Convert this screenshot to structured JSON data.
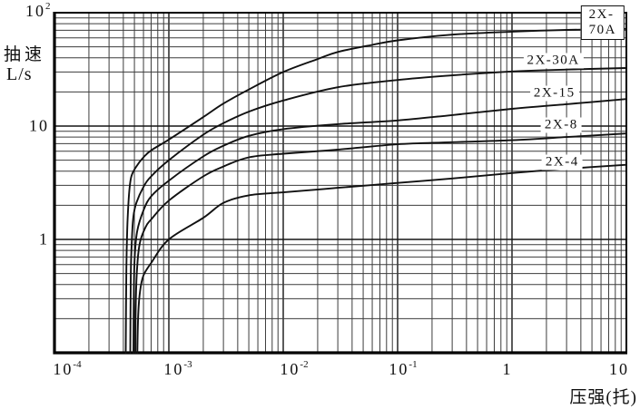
{
  "axes": {
    "y_label_cn": "抽速",
    "y_label_unit": "L/s",
    "x_label": "压强(托)",
    "x_ticks": [
      {
        "base": "10",
        "exp": "-4",
        "p": 0.0001
      },
      {
        "base": "10",
        "exp": "-3",
        "p": 0.001
      },
      {
        "base": "10",
        "exp": "-2",
        "p": 0.01
      },
      {
        "base": "10",
        "exp": "-1",
        "p": 0.1
      },
      {
        "base": "1",
        "exp": "",
        "p": 1
      },
      {
        "base": "10",
        "exp": "",
        "p": 10
      }
    ],
    "y_ticks": [
      {
        "base": "10",
        "exp": "2",
        "s": 100
      },
      {
        "base": "10",
        "exp": "",
        "s": 10
      },
      {
        "base": "1",
        "exp": "",
        "s": 1
      }
    ]
  },
  "colors": {
    "background": "#ffffff",
    "curve": "#111111",
    "grid_minor": "#3c3c3c",
    "grid_major": "#151515",
    "border": "#000000",
    "text": "#111111"
  },
  "chart_data": {
    "type": "line",
    "title": "",
    "xlabel": "压强(托)",
    "ylabel": "抽速 L/s",
    "x_scale": "log",
    "y_scale": "log",
    "xlim": [
      0.0001,
      10
    ],
    "ylim": [
      0.1,
      100
    ],
    "grid": "full log grid, major and minor lines on both axes",
    "legend_position": "labels inline at right side of curves",
    "series": [
      {
        "name": "2X-70A",
        "boxed_label": true,
        "label_at": {
          "p": 6.2,
          "s": 82
        },
        "points": [
          [
            0.00042,
            0.1
          ],
          [
            0.000425,
            0.55
          ],
          [
            0.000435,
            1.4
          ],
          [
            0.00045,
            2.6
          ],
          [
            0.00047,
            3.6
          ],
          [
            0.00052,
            4.4
          ],
          [
            0.0006,
            5.3
          ],
          [
            0.0007,
            6.1
          ],
          [
            0.001,
            7.6
          ],
          [
            0.002,
            12
          ],
          [
            0.003,
            15.8
          ],
          [
            0.005,
            21
          ],
          [
            0.01,
            30
          ],
          [
            0.02,
            39
          ],
          [
            0.03,
            45
          ],
          [
            0.06,
            52
          ],
          [
            0.1,
            57
          ],
          [
            0.3,
            64
          ],
          [
            1,
            68
          ],
          [
            3,
            70.5
          ],
          [
            10,
            72
          ]
        ]
      },
      {
        "name": "2X-30A",
        "boxed_label": false,
        "label_at": {
          "p": 2.3,
          "s": 38
        },
        "points": [
          [
            0.00046,
            0.1
          ],
          [
            0.000465,
            0.5
          ],
          [
            0.000475,
            1.0
          ],
          [
            0.00049,
            1.6
          ],
          [
            0.00052,
            2.1
          ],
          [
            0.0006,
            2.9
          ],
          [
            0.0007,
            3.6
          ],
          [
            0.001,
            5.0
          ],
          [
            0.002,
            8.4
          ],
          [
            0.003,
            10.6
          ],
          [
            0.005,
            13.4
          ],
          [
            0.01,
            16.8
          ],
          [
            0.03,
            22
          ],
          [
            0.1,
            25.5
          ],
          [
            0.3,
            28
          ],
          [
            1,
            30.3
          ],
          [
            3,
            31.5
          ],
          [
            10,
            32.5
          ]
        ]
      },
      {
        "name": "2X-15",
        "boxed_label": false,
        "label_at": {
          "p": 2.35,
          "s": 19.5
        },
        "points": [
          [
            0.00049,
            0.1
          ],
          [
            0.000495,
            0.4
          ],
          [
            0.000505,
            0.75
          ],
          [
            0.00053,
            1.2
          ],
          [
            0.0006,
            1.8
          ],
          [
            0.0007,
            2.4
          ],
          [
            0.001,
            3.3
          ],
          [
            0.002,
            5.4
          ],
          [
            0.003,
            6.7
          ],
          [
            0.005,
            8.2
          ],
          [
            0.01,
            9.4
          ],
          [
            0.03,
            10.4
          ],
          [
            0.1,
            11.2
          ],
          [
            0.3,
            12.5
          ],
          [
            1,
            14.2
          ],
          [
            3,
            15.6
          ],
          [
            10,
            17.3
          ]
        ]
      },
      {
        "name": "2X-8",
        "boxed_label": false,
        "label_at": {
          "p": 2.7,
          "s": 10.2
        },
        "points": [
          [
            0.00051,
            0.1
          ],
          [
            0.000515,
            0.3
          ],
          [
            0.00053,
            0.6
          ],
          [
            0.00056,
            0.95
          ],
          [
            0.00063,
            1.3
          ],
          [
            0.0007,
            1.5
          ],
          [
            0.001,
            2.2
          ],
          [
            0.002,
            3.6
          ],
          [
            0.003,
            4.4
          ],
          [
            0.005,
            5.3
          ],
          [
            0.01,
            5.7
          ],
          [
            0.03,
            6.2
          ],
          [
            0.1,
            6.9
          ],
          [
            0.3,
            7.2
          ],
          [
            1,
            7.5
          ],
          [
            3,
            8.0
          ],
          [
            10,
            8.6
          ]
        ]
      },
      {
        "name": "2X-4",
        "boxed_label": false,
        "label_at": {
          "p": 2.75,
          "s": 4.8
        },
        "points": [
          [
            0.00053,
            0.1
          ],
          [
            0.00054,
            0.22
          ],
          [
            0.00056,
            0.35
          ],
          [
            0.0006,
            0.48
          ],
          [
            0.0007,
            0.62
          ],
          [
            0.001,
            1.0
          ],
          [
            0.002,
            1.55
          ],
          [
            0.003,
            2.1
          ],
          [
            0.005,
            2.45
          ],
          [
            0.01,
            2.6
          ],
          [
            0.03,
            2.85
          ],
          [
            0.1,
            3.15
          ],
          [
            0.3,
            3.45
          ],
          [
            1,
            3.85
          ],
          [
            3,
            4.2
          ],
          [
            10,
            4.55
          ]
        ]
      }
    ]
  }
}
